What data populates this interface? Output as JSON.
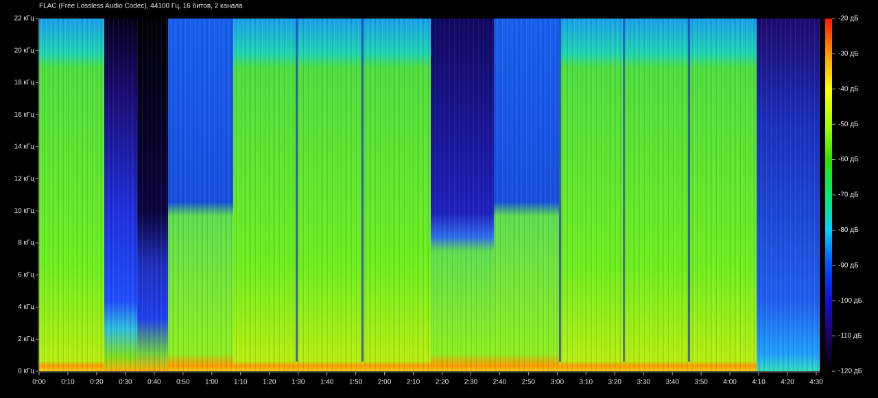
{
  "chart_data": {
    "type": "spectrogram",
    "title": "FLAC (Free Lossless Audio Codec), 44100 Гц, 16 битов, 2 канала",
    "ylim": [
      0,
      22
    ],
    "yticks": [
      {
        "value": 0,
        "label": "0 кГц"
      },
      {
        "value": 2,
        "label": "2 кГц"
      },
      {
        "value": 4,
        "label": "4 кГц"
      },
      {
        "value": 6,
        "label": "6 кГц"
      },
      {
        "value": 8,
        "label": "8 кГц"
      },
      {
        "value": 10,
        "label": "10 кГц"
      },
      {
        "value": 12,
        "label": "12 кГц"
      },
      {
        "value": 14,
        "label": "14 кГц"
      },
      {
        "value": 16,
        "label": "16 кГц"
      },
      {
        "value": 18,
        "label": "18 кГц"
      },
      {
        "value": 20,
        "label": "20 кГц"
      },
      {
        "value": 22,
        "label": "22 кГц"
      }
    ],
    "xlim": [
      0,
      270
    ],
    "xticks": [
      {
        "value": 0,
        "label": "0:00"
      },
      {
        "value": 10,
        "label": "0:10"
      },
      {
        "value": 20,
        "label": "0:20"
      },
      {
        "value": 30,
        "label": "0:30"
      },
      {
        "value": 40,
        "label": "0:40"
      },
      {
        "value": 50,
        "label": "0:50"
      },
      {
        "value": 60,
        "label": "1:00"
      },
      {
        "value": 70,
        "label": "1:10"
      },
      {
        "value": 80,
        "label": "1:20"
      },
      {
        "value": 90,
        "label": "1:30"
      },
      {
        "value": 100,
        "label": "1:40"
      },
      {
        "value": 110,
        "label": "1:50"
      },
      {
        "value": 120,
        "label": "2:00"
      },
      {
        "value": 130,
        "label": "2:10"
      },
      {
        "value": 140,
        "label": "2:20"
      },
      {
        "value": 150,
        "label": "2:30"
      },
      {
        "value": 160,
        "label": "2:40"
      },
      {
        "value": 170,
        "label": "2:50"
      },
      {
        "value": 180,
        "label": "3:00"
      },
      {
        "value": 190,
        "label": "3:10"
      },
      {
        "value": 200,
        "label": "3:20"
      },
      {
        "value": 210,
        "label": "3:30"
      },
      {
        "value": 220,
        "label": "3:40"
      },
      {
        "value": 230,
        "label": "3:50"
      },
      {
        "value": 240,
        "label": "4:00"
      },
      {
        "value": 250,
        "label": "4:10"
      },
      {
        "value": 260,
        "label": "4:20"
      },
      {
        "value": 270,
        "label": "4:30"
      }
    ],
    "colorbar": {
      "lim": [
        -120,
        -20
      ],
      "ticks": [
        {
          "value": -20,
          "label": "-20 дБ"
        },
        {
          "value": -30,
          "label": "-30 дБ"
        },
        {
          "value": -40,
          "label": "-40 дБ"
        },
        {
          "value": -50,
          "label": "-50 дБ"
        },
        {
          "value": -60,
          "label": "-60 дБ"
        },
        {
          "value": -70,
          "label": "-70 дБ"
        },
        {
          "value": -80,
          "label": "-80 дБ"
        },
        {
          "value": -90,
          "label": "-90 дБ"
        },
        {
          "value": -100,
          "label": "-100 дБ"
        },
        {
          "value": -110,
          "label": "-110 дБ"
        },
        {
          "value": -120,
          "label": "-120 дБ"
        }
      ],
      "colormap": [
        "#ff1a00",
        "#ff9900",
        "#ffff00",
        "#a8ff00",
        "#30e000",
        "#00ee70",
        "#00d0ff",
        "#0050ff",
        "#1010d0",
        "#200060",
        "#000000"
      ]
    }
  }
}
